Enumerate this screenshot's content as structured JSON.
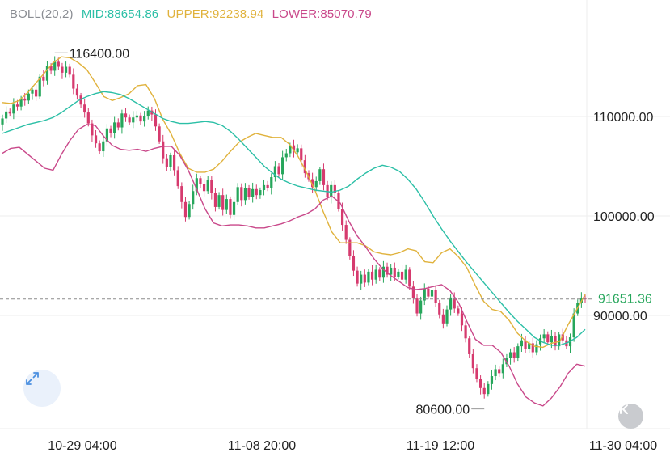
{
  "indicator": {
    "title": "BOLL(20,2)",
    "mid": "MID:88654.86",
    "upper": "UPPER:92238.94",
    "lower": "LOWER:85070.79"
  },
  "price_label": "91651.36",
  "colors": {
    "up": "#26a65b",
    "down": "#d63a6e",
    "mid_line": "#2bbfa6",
    "upper_line": "#e0b23c",
    "lower_line": "#c9488a",
    "price_label": "#26a65b",
    "grid": "#eeeeee",
    "axis_text": "#222222"
  },
  "icons": {
    "expand": "expand-diagonal-arrows-icon",
    "back": "chevron-left-bar-icon"
  },
  "chart_data": {
    "type": "candlestick",
    "y_axis": {
      "ticks": [
        90000,
        100000,
        110000
      ],
      "tick_labels": [
        "90000.00",
        "100000.00",
        "110000.00"
      ],
      "range": [
        80600,
        116400
      ]
    },
    "x_axis": {
      "tick_labels": [
        "10-29 04:00",
        "11-08 20:00",
        "11-19 12:00",
        "11-30 04:00"
      ]
    },
    "current_price": 91651.36,
    "annotations": {
      "high": {
        "label": "116400.00",
        "value": 116400
      },
      "low": {
        "label": "80600.00",
        "value": 80600
      }
    },
    "close": [
      109800,
      110500,
      110300,
      111200,
      111000,
      111800,
      111600,
      112300,
      112700,
      112000,
      114000,
      113600,
      115100,
      114600,
      115500,
      115000,
      114400,
      115000,
      114200,
      112800,
      112100,
      111200,
      110400,
      109300,
      108100,
      107300,
      106500,
      107500,
      108800,
      108300,
      109400,
      108900,
      110300,
      109900,
      109400,
      109900,
      110100,
      109500,
      110000,
      110600,
      110200,
      109000,
      107500,
      105800,
      104900,
      106100,
      104600,
      103000,
      101400,
      99900,
      101200,
      102500,
      103800,
      103200,
      102500,
      103600,
      102300,
      100900,
      102100,
      100600,
      101700,
      100100,
      101400,
      102900,
      101600,
      102800,
      101900,
      102700,
      102100,
      102600,
      103100,
      102800,
      103900,
      105000,
      104200,
      105900,
      106300,
      107100,
      106400,
      106800,
      105600,
      104300,
      103700,
      102900,
      103500,
      104700,
      103100,
      101900,
      103100,
      102300,
      100700,
      99100,
      97600,
      96000,
      94500,
      93200,
      94100,
      93300,
      94400,
      93600,
      94600,
      93800,
      94900,
      94100,
      94800,
      93900,
      94400,
      93600,
      94600,
      92900,
      91700,
      90200,
      91500,
      92700,
      91900,
      92600,
      91300,
      90100,
      89200,
      90600,
      91800,
      90700,
      90200,
      89000,
      87700,
      86100,
      84700,
      83600,
      82700,
      82100,
      83100,
      83900,
      84600,
      84200,
      85100,
      85700,
      86300,
      85700,
      86900,
      87500,
      86600,
      87200,
      86300,
      87100,
      87700,
      88100,
      87300,
      87900,
      86900,
      88100,
      87500,
      86900,
      87800,
      90200,
      91300,
      91700,
      91651.36
    ],
    "boll_mid": [
      108300,
      108600,
      108900,
      109200,
      109400,
      109600,
      109900,
      110400,
      111000,
      111600,
      112000,
      112300,
      112500,
      112400,
      112200,
      111800,
      111300,
      110800,
      110300,
      109800,
      109500,
      109300,
      109300,
      109400,
      109500,
      109400,
      109100,
      108500,
      107700,
      106800,
      105900,
      105000,
      104300,
      103700,
      103300,
      103000,
      102800,
      102600,
      102500,
      102400,
      102600,
      103000,
      103700,
      104300,
      104800,
      105100,
      104900,
      104500,
      103700,
      102700,
      101400,
      100000,
      98700,
      97500,
      96400,
      95300,
      94300,
      93300,
      92300,
      91300,
      90300,
      89400,
      88600,
      87800,
      87300,
      87000,
      87000,
      87300,
      87800,
      88600
    ],
    "boll_upper": [
      111400,
      111300,
      111600,
      112400,
      113400,
      114400,
      115400,
      116000,
      115900,
      115400,
      114700,
      113400,
      112000,
      111600,
      111900,
      112300,
      113100,
      113200,
      111800,
      109700,
      108200,
      106300,
      104800,
      104400,
      104400,
      104700,
      105500,
      106500,
      107400,
      107900,
      108300,
      108100,
      107900,
      107900,
      107200,
      106000,
      104400,
      102600,
      100400,
      98400,
      97300,
      97300,
      97300,
      97000,
      96400,
      96200,
      96100,
      96300,
      96700,
      96500,
      95400,
      95300,
      96300,
      96700,
      95900,
      94800,
      93000,
      91400,
      90600,
      90400,
      89500,
      88200,
      87400,
      86900,
      86800,
      87200,
      87400,
      89100,
      90600,
      92100
    ],
    "boll_lower": [
      106300,
      106800,
      106900,
      106200,
      105500,
      104800,
      104600,
      106200,
      107600,
      108700,
      109200,
      109100,
      108000,
      107100,
      106700,
      106600,
      106700,
      106500,
      106800,
      107000,
      107000,
      106100,
      104600,
      102700,
      100700,
      99300,
      99000,
      99100,
      99100,
      99000,
      98800,
      98800,
      99000,
      99200,
      99500,
      99900,
      100200,
      100700,
      101600,
      102000,
      101300,
      99500,
      98000,
      96900,
      95700,
      94700,
      94000,
      93400,
      92800,
      92600,
      92700,
      92900,
      93100,
      92500,
      91300,
      89400,
      87600,
      87000,
      87000,
      86300,
      84900,
      83100,
      81800,
      81200,
      80900,
      81700,
      82800,
      84200,
      85100,
      84900
    ]
  }
}
